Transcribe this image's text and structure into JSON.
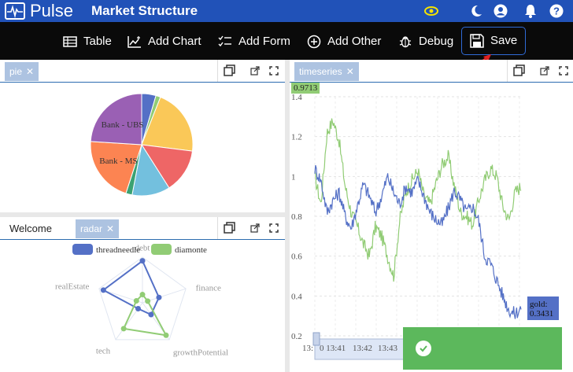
{
  "header": {
    "brand": "Pulse",
    "title": "Market Structure",
    "icons": [
      "pulse-logo-icon",
      "eye-icon",
      "moon-icon",
      "user-icon",
      "bell-icon",
      "help-icon"
    ]
  },
  "toolbar": {
    "table_label": "Table",
    "add_chart_label": "Add Chart",
    "add_form_label": "Add Form",
    "add_other_label": "Add Other",
    "debug_label": "Debug",
    "save_label": "Save"
  },
  "panels": {
    "pie_tab": "pie",
    "timeseries_tab": "timeseries",
    "welcome_tab": "Welcome",
    "radar_tab": "radar"
  },
  "chart_data": [
    {
      "type": "pie",
      "slice_labels": [
        "Bank - UBS",
        "Bank - MS"
      ],
      "slices": [
        {
          "label": "",
          "value": 4.5,
          "color": "#5470c6"
        },
        {
          "label": "",
          "value": 1.5,
          "color": "#91cc75"
        },
        {
          "label": "",
          "value": 21,
          "color": "#fac858"
        },
        {
          "label": "",
          "value": 14,
          "color": "#ee6666"
        },
        {
          "label": "",
          "value": 12,
          "color": "#73c0de"
        },
        {
          "label": "",
          "value": 2,
          "color": "#3ba272"
        },
        {
          "label": "Bank - MS",
          "value": 21,
          "color": "#fc8452"
        },
        {
          "label": "Bank - UBS",
          "value": 24,
          "color": "#9a60b4"
        }
      ]
    },
    {
      "type": "line",
      "yticks": [
        "1.4",
        "1.2",
        "1",
        "0.8",
        "0.6",
        "0.4",
        "0.2"
      ],
      "ylim": [
        0.2,
        1.4
      ],
      "xticks": [
        "13:",
        "0 13:41",
        "13:42",
        "13:43"
      ],
      "top_value": "0.9713",
      "end_label_name": "gold:",
      "end_label_value": "0.3431",
      "series": [
        {
          "color": "#91cc75",
          "start": 1.0,
          "values": [
            1.0,
            0.86,
            1.22,
            1.28,
            1.18,
            0.95,
            0.82,
            0.75,
            0.66,
            0.6,
            0.75,
            0.7,
            0.6,
            0.5,
            0.78,
            0.92,
            0.98,
            1.03,
            0.9,
            0.86,
            0.97,
            1.06,
            1.1,
            0.95,
            0.82,
            0.8,
            0.76,
            0.88,
            0.98,
            1.04,
            1.0,
            0.85,
            0.78,
            0.92,
            0.95
          ]
        },
        {
          "color": "#5470c6",
          "start": 1.04,
          "values": [
            1.04,
            0.98,
            0.82,
            0.88,
            0.92,
            0.8,
            0.74,
            0.85,
            0.96,
            0.9,
            0.82,
            0.9,
            1.0,
            0.92,
            0.86,
            0.95,
            0.92,
            0.98,
            0.9,
            0.82,
            0.78,
            0.76,
            0.84,
            0.93,
            0.88,
            0.82,
            0.85,
            0.78,
            0.6,
            0.56,
            0.48,
            0.4,
            0.33,
            0.31,
            0.34
          ]
        }
      ]
    },
    {
      "type": "radar",
      "indicators": [
        "debt",
        "finance",
        "growthPotential",
        "tech",
        "realEstate"
      ],
      "series": [
        {
          "name": "threadneedle",
          "color": "#5470c6",
          "values": [
            0.92,
            0.38,
            0.32,
            0.16,
            0.9
          ]
        },
        {
          "name": "diamonte",
          "color": "#91cc75",
          "values": [
            0.18,
            0.12,
            0.88,
            0.7,
            0.14
          ]
        }
      ]
    }
  ]
}
